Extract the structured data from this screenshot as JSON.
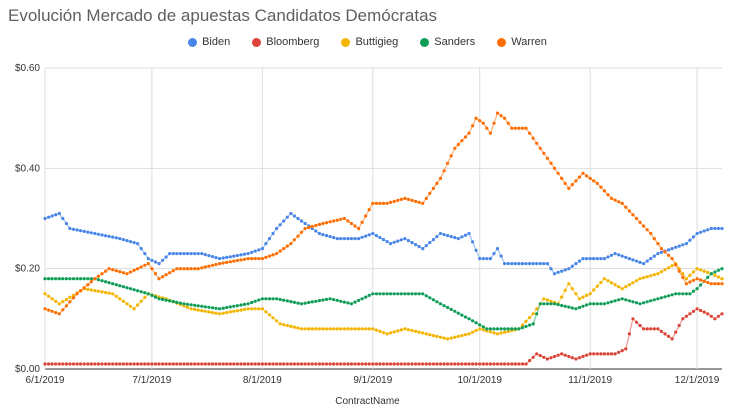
{
  "chart_data": {
    "type": "line",
    "title": "Evolución Mercado de apuestas Candidatos Demócratas",
    "xlabel": "ContractName",
    "ylabel": "",
    "x_ticks": [
      "6/1/2019",
      "7/1/2019",
      "8/1/2019",
      "9/1/2019",
      "10/1/2019",
      "11/1/2019",
      "12/1/2019"
    ],
    "y_ticks": [
      "$0.00",
      "$0.20",
      "$0.40",
      "$0.60"
    ],
    "ylim": [
      0,
      0.6
    ],
    "xlim": [
      "2019-06-01",
      "2019-12-08"
    ],
    "grid": true,
    "legend": "top",
    "series": [
      {
        "name": "Biden",
        "color": "#4a86e8",
        "points": [
          [
            "2019-06-01",
            0.3
          ],
          [
            "2019-06-05",
            0.31
          ],
          [
            "2019-06-08",
            0.28
          ],
          [
            "2019-06-15",
            0.27
          ],
          [
            "2019-06-22",
            0.26
          ],
          [
            "2019-06-27",
            0.25
          ],
          [
            "2019-06-30",
            0.22
          ],
          [
            "2019-07-03",
            0.21
          ],
          [
            "2019-07-06",
            0.23
          ],
          [
            "2019-07-15",
            0.23
          ],
          [
            "2019-07-20",
            0.22
          ],
          [
            "2019-07-28",
            0.23
          ],
          [
            "2019-08-01",
            0.24
          ],
          [
            "2019-08-05",
            0.28
          ],
          [
            "2019-08-09",
            0.31
          ],
          [
            "2019-08-13",
            0.29
          ],
          [
            "2019-08-17",
            0.27
          ],
          [
            "2019-08-22",
            0.26
          ],
          [
            "2019-08-28",
            0.26
          ],
          [
            "2019-09-01",
            0.27
          ],
          [
            "2019-09-06",
            0.25
          ],
          [
            "2019-09-10",
            0.26
          ],
          [
            "2019-09-15",
            0.24
          ],
          [
            "2019-09-20",
            0.27
          ],
          [
            "2019-09-25",
            0.26
          ],
          [
            "2019-09-28",
            0.27
          ],
          [
            "2019-10-01",
            0.22
          ],
          [
            "2019-10-04",
            0.22
          ],
          [
            "2019-10-06",
            0.24
          ],
          [
            "2019-10-08",
            0.21
          ],
          [
            "2019-10-15",
            0.21
          ],
          [
            "2019-10-20",
            0.21
          ],
          [
            "2019-10-22",
            0.19
          ],
          [
            "2019-10-26",
            0.2
          ],
          [
            "2019-10-30",
            0.22
          ],
          [
            "2019-11-05",
            0.22
          ],
          [
            "2019-11-08",
            0.23
          ],
          [
            "2019-11-12",
            0.22
          ],
          [
            "2019-11-16",
            0.21
          ],
          [
            "2019-11-20",
            0.23
          ],
          [
            "2019-11-24",
            0.24
          ],
          [
            "2019-11-28",
            0.25
          ],
          [
            "2019-12-01",
            0.27
          ],
          [
            "2019-12-05",
            0.28
          ],
          [
            "2019-12-08",
            0.28
          ]
        ]
      },
      {
        "name": "Bloomberg",
        "color": "#db4437",
        "points": [
          [
            "2019-06-01",
            0.01
          ],
          [
            "2019-07-01",
            0.01
          ],
          [
            "2019-08-01",
            0.01
          ],
          [
            "2019-09-01",
            0.01
          ],
          [
            "2019-10-01",
            0.01
          ],
          [
            "2019-10-14",
            0.01
          ],
          [
            "2019-10-17",
            0.03
          ],
          [
            "2019-10-20",
            0.02
          ],
          [
            "2019-10-24",
            0.03
          ],
          [
            "2019-10-28",
            0.02
          ],
          [
            "2019-11-01",
            0.03
          ],
          [
            "2019-11-08",
            0.03
          ],
          [
            "2019-11-11",
            0.04
          ],
          [
            "2019-11-13",
            0.1
          ],
          [
            "2019-11-16",
            0.08
          ],
          [
            "2019-11-20",
            0.08
          ],
          [
            "2019-11-24",
            0.06
          ],
          [
            "2019-11-27",
            0.1
          ],
          [
            "2019-12-01",
            0.12
          ],
          [
            "2019-12-04",
            0.11
          ],
          [
            "2019-12-06",
            0.1
          ],
          [
            "2019-12-08",
            0.11
          ]
        ]
      },
      {
        "name": "Buttigieg",
        "color": "#f4b400",
        "points": [
          [
            "2019-06-01",
            0.15
          ],
          [
            "2019-06-05",
            0.13
          ],
          [
            "2019-06-12",
            0.16
          ],
          [
            "2019-06-20",
            0.15
          ],
          [
            "2019-06-26",
            0.12
          ],
          [
            "2019-06-30",
            0.15
          ],
          [
            "2019-07-05",
            0.14
          ],
          [
            "2019-07-12",
            0.12
          ],
          [
            "2019-07-20",
            0.11
          ],
          [
            "2019-07-28",
            0.12
          ],
          [
            "2019-08-01",
            0.12
          ],
          [
            "2019-08-06",
            0.09
          ],
          [
            "2019-08-12",
            0.08
          ],
          [
            "2019-08-20",
            0.08
          ],
          [
            "2019-09-01",
            0.08
          ],
          [
            "2019-09-05",
            0.07
          ],
          [
            "2019-09-10",
            0.08
          ],
          [
            "2019-09-16",
            0.07
          ],
          [
            "2019-09-22",
            0.06
          ],
          [
            "2019-09-28",
            0.07
          ],
          [
            "2019-10-01",
            0.08
          ],
          [
            "2019-10-06",
            0.07
          ],
          [
            "2019-10-12",
            0.08
          ],
          [
            "2019-10-16",
            0.11
          ],
          [
            "2019-10-19",
            0.14
          ],
          [
            "2019-10-23",
            0.13
          ],
          [
            "2019-10-26",
            0.17
          ],
          [
            "2019-10-29",
            0.14
          ],
          [
            "2019-11-01",
            0.15
          ],
          [
            "2019-11-05",
            0.18
          ],
          [
            "2019-11-10",
            0.16
          ],
          [
            "2019-11-15",
            0.18
          ],
          [
            "2019-11-20",
            0.19
          ],
          [
            "2019-11-25",
            0.21
          ],
          [
            "2019-11-28",
            0.18
          ],
          [
            "2019-12-01",
            0.2
          ],
          [
            "2019-12-05",
            0.19
          ],
          [
            "2019-12-08",
            0.18
          ]
        ]
      },
      {
        "name": "Sanders",
        "color": "#0f9d58",
        "points": [
          [
            "2019-06-01",
            0.18
          ],
          [
            "2019-06-15",
            0.18
          ],
          [
            "2019-06-20",
            0.17
          ],
          [
            "2019-06-25",
            0.16
          ],
          [
            "2019-06-30",
            0.15
          ],
          [
            "2019-07-03",
            0.14
          ],
          [
            "2019-07-10",
            0.13
          ],
          [
            "2019-07-20",
            0.12
          ],
          [
            "2019-07-28",
            0.13
          ],
          [
            "2019-08-01",
            0.14
          ],
          [
            "2019-08-05",
            0.14
          ],
          [
            "2019-08-12",
            0.13
          ],
          [
            "2019-08-20",
            0.14
          ],
          [
            "2019-08-26",
            0.13
          ],
          [
            "2019-09-01",
            0.15
          ],
          [
            "2019-09-08",
            0.15
          ],
          [
            "2019-09-15",
            0.15
          ],
          [
            "2019-09-20",
            0.13
          ],
          [
            "2019-09-28",
            0.1
          ],
          [
            "2019-10-03",
            0.08
          ],
          [
            "2019-10-08",
            0.08
          ],
          [
            "2019-10-12",
            0.08
          ],
          [
            "2019-10-16",
            0.09
          ],
          [
            "2019-10-18",
            0.13
          ],
          [
            "2019-10-22",
            0.13
          ],
          [
            "2019-10-28",
            0.12
          ],
          [
            "2019-11-01",
            0.13
          ],
          [
            "2019-11-05",
            0.13
          ],
          [
            "2019-11-10",
            0.14
          ],
          [
            "2019-11-15",
            0.13
          ],
          [
            "2019-11-20",
            0.14
          ],
          [
            "2019-11-25",
            0.15
          ],
          [
            "2019-11-29",
            0.15
          ],
          [
            "2019-12-01",
            0.16
          ],
          [
            "2019-12-05",
            0.19
          ],
          [
            "2019-12-08",
            0.2
          ]
        ]
      },
      {
        "name": "Warren",
        "color": "#ff6d01",
        "points": [
          [
            "2019-06-01",
            0.12
          ],
          [
            "2019-06-05",
            0.11
          ],
          [
            "2019-06-10",
            0.15
          ],
          [
            "2019-06-15",
            0.18
          ],
          [
            "2019-06-19",
            0.2
          ],
          [
            "2019-06-24",
            0.19
          ],
          [
            "2019-06-30",
            0.21
          ],
          [
            "2019-07-03",
            0.18
          ],
          [
            "2019-07-08",
            0.2
          ],
          [
            "2019-07-14",
            0.2
          ],
          [
            "2019-07-20",
            0.21
          ],
          [
            "2019-07-28",
            0.22
          ],
          [
            "2019-08-01",
            0.22
          ],
          [
            "2019-08-05",
            0.23
          ],
          [
            "2019-08-09",
            0.25
          ],
          [
            "2019-08-13",
            0.28
          ],
          [
            "2019-08-18",
            0.29
          ],
          [
            "2019-08-24",
            0.3
          ],
          [
            "2019-08-28",
            0.28
          ],
          [
            "2019-09-01",
            0.33
          ],
          [
            "2019-09-05",
            0.33
          ],
          [
            "2019-09-10",
            0.34
          ],
          [
            "2019-09-15",
            0.33
          ],
          [
            "2019-09-20",
            0.38
          ],
          [
            "2019-09-24",
            0.44
          ],
          [
            "2019-09-28",
            0.47
          ],
          [
            "2019-09-30",
            0.5
          ],
          [
            "2019-10-02",
            0.49
          ],
          [
            "2019-10-04",
            0.47
          ],
          [
            "2019-10-06",
            0.51
          ],
          [
            "2019-10-08",
            0.5
          ],
          [
            "2019-10-10",
            0.48
          ],
          [
            "2019-10-14",
            0.48
          ],
          [
            "2019-10-18",
            0.44
          ],
          [
            "2019-10-22",
            0.4
          ],
          [
            "2019-10-26",
            0.36
          ],
          [
            "2019-10-30",
            0.39
          ],
          [
            "2019-11-03",
            0.37
          ],
          [
            "2019-11-07",
            0.34
          ],
          [
            "2019-11-10",
            0.33
          ],
          [
            "2019-11-14",
            0.3
          ],
          [
            "2019-11-18",
            0.27
          ],
          [
            "2019-11-21",
            0.24
          ],
          [
            "2019-11-24",
            0.22
          ],
          [
            "2019-11-28",
            0.17
          ],
          [
            "2019-12-01",
            0.18
          ],
          [
            "2019-12-05",
            0.17
          ],
          [
            "2019-12-08",
            0.17
          ]
        ]
      }
    ]
  }
}
